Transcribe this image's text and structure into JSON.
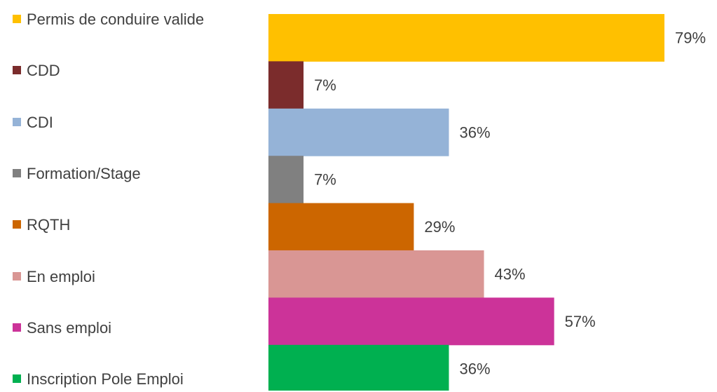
{
  "chart_data": {
    "type": "bar",
    "orientation": "horizontal",
    "series": [
      {
        "name": "Permis de conduire valide",
        "color": "#FFC000",
        "values": [
          79
        ],
        "value_labels": [
          "79%"
        ]
      },
      {
        "name": "CDD",
        "color": "#7B2C2C",
        "values": [
          7
        ],
        "value_labels": [
          "7%"
        ]
      },
      {
        "name": "CDI",
        "color": "#95B3D7",
        "values": [
          36
        ],
        "value_labels": [
          "36%"
        ]
      },
      {
        "name": "Formation/Stage",
        "color": "#808080",
        "values": [
          7
        ],
        "value_labels": [
          "7%"
        ]
      },
      {
        "name": "RQTH",
        "color": "#CC6600",
        "values": [
          29
        ],
        "value_labels": [
          "29%"
        ]
      },
      {
        "name": "En emploi",
        "color": "#D99694",
        "values": [
          43
        ],
        "value_labels": [
          "43%"
        ]
      },
      {
        "name": "Sans emploi",
        "color": "#CC3399",
        "values": [
          57
        ],
        "value_labels": [
          "57%"
        ]
      },
      {
        "name": "Inscription Pole Emploi",
        "color": "#00B050",
        "values": [
          36
        ],
        "value_labels": [
          "36%"
        ]
      }
    ],
    "legend": "left"
  }
}
